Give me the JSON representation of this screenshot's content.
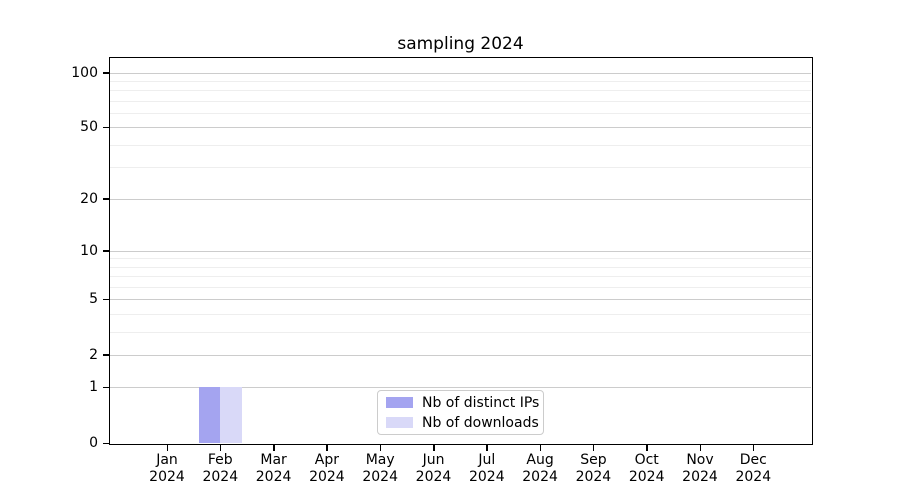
{
  "figure": {
    "background": "#ffffff",
    "spine_color": "#000000",
    "grid_major_color": "#cccccc",
    "grid_minor_color": "#eeeeee"
  },
  "chart_data": {
    "type": "bar",
    "title": "sampling 2024",
    "xlabel": "",
    "ylabel": "",
    "yscale": "log1p",
    "ylim": [
      0,
      120
    ],
    "yticks": [
      0,
      1,
      2,
      5,
      10,
      20,
      50,
      100
    ],
    "minor_yticks": [
      3,
      4,
      6,
      7,
      8,
      9,
      30,
      40,
      60,
      70,
      80,
      90
    ],
    "grid": "horizontal-major-and-minor",
    "categories": [
      {
        "month": "Jan",
        "year": "2024"
      },
      {
        "month": "Feb",
        "year": "2024"
      },
      {
        "month": "Mar",
        "year": "2024"
      },
      {
        "month": "Apr",
        "year": "2024"
      },
      {
        "month": "May",
        "year": "2024"
      },
      {
        "month": "Jun",
        "year": "2024"
      },
      {
        "month": "Jul",
        "year": "2024"
      },
      {
        "month": "Aug",
        "year": "2024"
      },
      {
        "month": "Sep",
        "year": "2024"
      },
      {
        "month": "Oct",
        "year": "2024"
      },
      {
        "month": "Nov",
        "year": "2024"
      },
      {
        "month": "Dec",
        "year": "2024"
      }
    ],
    "series": [
      {
        "name": "Nb of distinct IPs",
        "color": "#a4a4f0",
        "values": [
          0,
          1,
          0,
          0,
          0,
          0,
          0,
          0,
          0,
          0,
          0,
          0
        ]
      },
      {
        "name": "Nb of downloads",
        "color": "#d9d9f8",
        "values": [
          0,
          1,
          0,
          0,
          0,
          0,
          0,
          0,
          0,
          0,
          0,
          0
        ]
      }
    ],
    "legend_position": "lower-center"
  }
}
